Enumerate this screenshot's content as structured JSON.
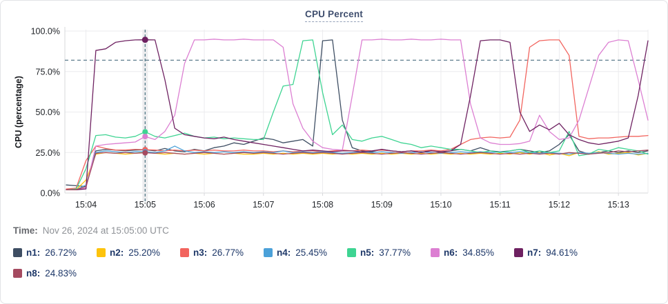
{
  "title": "CPU Percent",
  "time_row": {
    "label": "Time:",
    "value": "Nov 26, 2024 at 15:05:00 UTC"
  },
  "legend": [
    {
      "label": "n1:",
      "value": "26.72%",
      "color": "#3e4e63"
    },
    {
      "label": "n2:",
      "value": "25.20%",
      "color": "#fdc30c"
    },
    {
      "label": "n3:",
      "value": "26.77%",
      "color": "#f2645e"
    },
    {
      "label": "n4:",
      "value": "25.45%",
      "color": "#4ba1d9"
    },
    {
      "label": "n5:",
      "value": "37.77%",
      "color": "#3ed492"
    },
    {
      "label": "n6:",
      "value": "34.85%",
      "color": "#dc7fd2"
    },
    {
      "label": "n7:",
      "value": "94.61%",
      "color": "#6e2161"
    },
    {
      "label": "n8:",
      "value": "24.83%",
      "color": "#a54a60"
    }
  ],
  "chart_data": {
    "type": "line",
    "title": "CPU Percent",
    "ylabel": "CPU (percentage)",
    "ylim": [
      0,
      100
    ],
    "y_ticks": [
      0,
      25,
      50,
      75,
      100
    ],
    "y_tick_labels": [
      "0.0%",
      "25.0%",
      "50.0%",
      "75.0%",
      "100.0%"
    ],
    "x_start": "15:03:40",
    "x_end": "15:13:30",
    "x_step_seconds": 10,
    "x_tick_labels": [
      "15:04",
      "15:05",
      "15:06",
      "15:07",
      "15:08",
      "15:09",
      "15:10",
      "15:11",
      "15:12",
      "15:13"
    ],
    "x_tick_indices": [
      2,
      8,
      14,
      20,
      26,
      32,
      38,
      44,
      50,
      56
    ],
    "grid": true,
    "threshold_percent": 82,
    "crosshair": {
      "index": 8,
      "time_label": "15:05:00"
    },
    "series": [
      {
        "name": "n1",
        "color": "#3e4e63",
        "value_at_crosshair": 26.72,
        "values": [
          5,
          4.5,
          4,
          26,
          27,
          26.5,
          26,
          26.5,
          26.72,
          26,
          27.5,
          26,
          25.5,
          27,
          26,
          28,
          29,
          31,
          30,
          32,
          34,
          33,
          31,
          32,
          33,
          29,
          94,
          94.5,
          45,
          28,
          26,
          25.5,
          27,
          26,
          25.5,
          26,
          25,
          26.5,
          25,
          26,
          27,
          26,
          28,
          26,
          25.5,
          26,
          27,
          26,
          25,
          26,
          30,
          36,
          26,
          24,
          25,
          26,
          25,
          26,
          25,
          26
        ]
      },
      {
        "name": "n2",
        "color": "#fdc30c",
        "value_at_crosshair": 25.2,
        "values": [
          2,
          2,
          8,
          24,
          25,
          24.5,
          24,
          24.5,
          25.2,
          24.5,
          24,
          24.5,
          24,
          24.5,
          24,
          24.5,
          24,
          24.5,
          24,
          24,
          24.5,
          24,
          24.5,
          24,
          24.5,
          24,
          24.5,
          24,
          24.5,
          24,
          24.5,
          24,
          24.5,
          24,
          24.5,
          24,
          24.5,
          24,
          24.5,
          24,
          24.5,
          24,
          24.5,
          24,
          24.5,
          24,
          25,
          24,
          25,
          23.5,
          24.5,
          23,
          25,
          24,
          25.5,
          24,
          24.5,
          25,
          23.5,
          24.5
        ]
      },
      {
        "name": "n3",
        "color": "#f2645e",
        "value_at_crosshair": 26.77,
        "values": [
          2.5,
          3,
          20,
          29,
          27.5,
          26.5,
          26.5,
          27,
          26.77,
          26.5,
          26,
          26.5,
          26,
          26.5,
          26,
          26.5,
          26,
          26,
          26.5,
          26,
          26,
          25.5,
          26,
          25.5,
          26,
          26,
          25.5,
          26,
          26.5,
          26,
          26.5,
          26,
          26.5,
          26,
          25.5,
          26,
          26,
          26.5,
          26,
          27,
          30,
          33,
          34,
          34.5,
          34,
          34.5,
          45,
          90,
          94,
          94.5,
          94.5,
          85,
          35,
          33.5,
          34,
          34,
          34.5,
          35,
          35,
          35.5
        ]
      },
      {
        "name": "n4",
        "color": "#4ba1d9",
        "value_at_crosshair": 25.45,
        "values": [
          2,
          2,
          5,
          25,
          26,
          25.5,
          25,
          25.5,
          25.45,
          25,
          26,
          29,
          26,
          25,
          25.5,
          25,
          25.5,
          25,
          25.5,
          25,
          25.5,
          25,
          26,
          25,
          25.5,
          25,
          25.5,
          25,
          24.5,
          25,
          25.5,
          25,
          25.5,
          25,
          24.5,
          25,
          25.5,
          25,
          24.5,
          25,
          25.5,
          25,
          25.5,
          25,
          25.5,
          25,
          25.5,
          25,
          24.5,
          25,
          24.5,
          24,
          25,
          24.5,
          25,
          24.5,
          24,
          24.5,
          24,
          24.5
        ]
      },
      {
        "name": "n5",
        "color": "#3ed492",
        "value_at_crosshair": 37.77,
        "values": [
          2,
          2.5,
          15,
          35.5,
          36,
          34.5,
          34,
          35,
          37.77,
          35,
          34,
          35.5,
          37,
          35,
          34,
          34.5,
          33.5,
          34,
          33.5,
          33,
          33,
          50,
          66,
          67,
          94,
          94.5,
          62,
          36,
          42,
          33,
          32,
          34,
          35,
          33,
          31,
          30,
          28,
          29,
          28,
          27,
          27,
          26,
          25,
          26,
          25,
          26,
          27,
          25,
          26,
          25,
          26,
          38,
          23,
          24,
          27,
          26,
          28,
          27,
          26,
          24
        ]
      },
      {
        "name": "n6",
        "color": "#dc7fd2",
        "value_at_crosshair": 34.85,
        "values": [
          2,
          2,
          3,
          29,
          30,
          30.5,
          31,
          31.5,
          34.85,
          33,
          38,
          48,
          80,
          94.5,
          94.5,
          95,
          94.5,
          94.5,
          95,
          94.5,
          94.5,
          94.5,
          90,
          55,
          40,
          32,
          28,
          27,
          26.5,
          60,
          94.5,
          94.5,
          95,
          94.5,
          94.5,
          95,
          94.5,
          94.5,
          95,
          94.5,
          94.5,
          55,
          34,
          31,
          30,
          30,
          30.5,
          32,
          48,
          38,
          33,
          34,
          45,
          65,
          85,
          93,
          94.5,
          94,
          70,
          45
        ]
      },
      {
        "name": "n7",
        "color": "#6e2161",
        "value_at_crosshair": 94.61,
        "values": [
          2,
          2,
          2.5,
          88,
          89,
          93,
          94,
          94.5,
          94.61,
          94.5,
          70,
          40,
          36,
          35,
          34,
          33.5,
          34.5,
          33,
          32,
          31,
          30,
          29,
          28,
          27,
          26,
          26.5,
          26,
          25.5,
          26,
          26,
          25.5,
          26,
          27,
          26,
          25.5,
          26,
          25,
          26,
          25.5,
          26,
          30,
          60,
          94,
          94.5,
          94.5,
          93,
          50,
          38,
          42,
          39,
          43,
          36,
          33,
          31,
          30,
          31,
          32,
          34,
          60,
          94
        ]
      },
      {
        "name": "n8",
        "color": "#a54a60",
        "value_at_crosshair": 24.83,
        "values": [
          2,
          2,
          4,
          24.5,
          25,
          24.5,
          25,
          24.5,
          24.83,
          24.5,
          25,
          24.5,
          24,
          24.5,
          25,
          24.5,
          24,
          24.5,
          25,
          24.5,
          25,
          24.5,
          24,
          24.5,
          25,
          24.5,
          25,
          24.5,
          24,
          24.5,
          25,
          24.5,
          24,
          24.5,
          25,
          24.5,
          24,
          24.5,
          25,
          24.5,
          24,
          24.5,
          25,
          24.5,
          24,
          24.5,
          24,
          24.5,
          24,
          24.5,
          24,
          25,
          24.5,
          24,
          24.5,
          25,
          26,
          25.5,
          26,
          26.5
        ]
      }
    ],
    "colors": {
      "grid": "#ebebee",
      "axis": "#d7d8db",
      "threshold_line": "#4a6e80",
      "crosshair_line": "#47707e",
      "crosshair_band": "#ededef",
      "tick_text": "#212429",
      "axis_label_text": "#16181c"
    }
  }
}
